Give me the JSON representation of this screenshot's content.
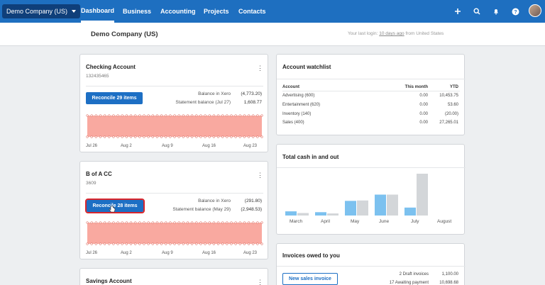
{
  "nav": {
    "org_name": "Demo Company (US)",
    "tabs": [
      "Dashboard",
      "Business",
      "Accounting",
      "Projects",
      "Contacts"
    ],
    "active_tab": "Dashboard",
    "icons": [
      "plus-icon",
      "search-icon",
      "bell-icon",
      "help-icon"
    ],
    "accent": "#1e6fc0"
  },
  "subheader": {
    "title": "Demo Company (US)",
    "login_prefix": "Your last login:",
    "login_link": "10 days ago",
    "login_suffix": "from United States"
  },
  "checking": {
    "title": "Checking Account",
    "number": "132435465",
    "reconcile_label": "Reconcile 29 items",
    "balance_xero_label": "Balance in Xero",
    "balance_xero": "(4,773.20)",
    "statement_label": "Statement balance (Jul 27)",
    "statement_value": "1,608.77",
    "dates": [
      "Jul 26",
      "Aug 2",
      "Aug 9",
      "Aug 16",
      "Aug 23"
    ]
  },
  "bofa": {
    "title": "B of A CC",
    "number": "3609",
    "reconcile_label": "Reconcile 28 items",
    "balance_xero_label": "Balance in Xero",
    "balance_xero": "(291.80)",
    "statement_label": "Statement balance (May 29)",
    "statement_value": "(2,948.53)",
    "dates": [
      "Jul 26",
      "Aug 2",
      "Aug 9",
      "Aug 16",
      "Aug 23"
    ]
  },
  "savings": {
    "title": "Savings Account"
  },
  "watchlist": {
    "title": "Account watchlist",
    "headers": [
      "Account",
      "This month",
      "YTD"
    ],
    "rows": [
      [
        "Advertising (600)",
        "0.00",
        "10,453.75"
      ],
      [
        "Entertainment (620)",
        "0.00",
        "53.60"
      ],
      [
        "Inventory (140)",
        "0.00",
        "(20.00)"
      ],
      [
        "Sales (400)",
        "0.00",
        "27,265.01"
      ]
    ]
  },
  "cash": {
    "title": "Total cash in and out",
    "months": [
      "March",
      "April",
      "May",
      "June",
      "July",
      "August"
    ],
    "cash_in": [
      0.1,
      0.08,
      0.35,
      0.5,
      0.19,
      0
    ],
    "cash_out": [
      0.06,
      0.05,
      0.36,
      0.5,
      1.0,
      0
    ],
    "in_color": "#7cc1ef",
    "out_color": "#d3d6d9"
  },
  "invoices": {
    "title": "Invoices owed to you",
    "new_label": "New sales invoice",
    "rows": [
      [
        "2 Draft invoices",
        "1,100.00"
      ],
      [
        "17 Awaiting payment",
        "10,698.68"
      ]
    ]
  }
}
